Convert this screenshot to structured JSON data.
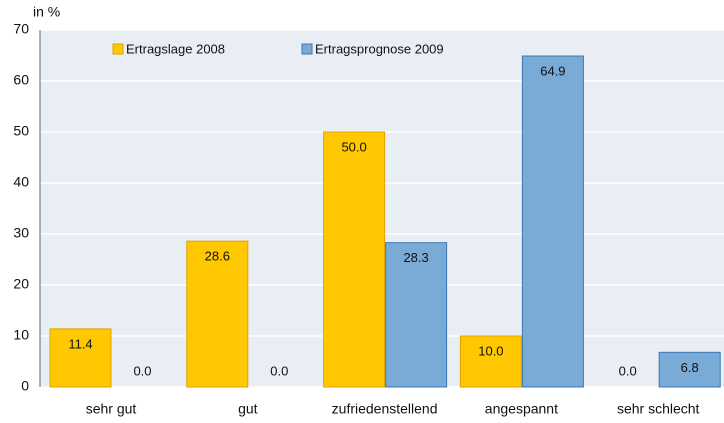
{
  "chart_data": {
    "type": "bar",
    "y_label": "in %",
    "categories": [
      "sehr gut",
      "gut",
      "zufriedenstellend",
      "angespannt",
      "sehr schlecht"
    ],
    "series": [
      {
        "name": "Ertragslage 2008",
        "color": "#ffc800",
        "values": [
          11.4,
          28.6,
          50.0,
          10.0,
          0.0
        ],
        "value_labels": [
          "11.4",
          "28.6",
          "50.0",
          "10.0",
          "0.0"
        ]
      },
      {
        "name": "Ertragsprognose 2009",
        "color": "#7aaad6",
        "values": [
          0.0,
          0.0,
          28.3,
          64.9,
          6.8
        ],
        "value_labels": [
          "0.0",
          "0.0",
          "28.3",
          "64.9",
          "6.8"
        ]
      }
    ],
    "ylim": [
      0,
      70
    ],
    "yticks": [
      0,
      10,
      20,
      30,
      40,
      50,
      60,
      70
    ],
    "grid": true,
    "legend": "top"
  }
}
